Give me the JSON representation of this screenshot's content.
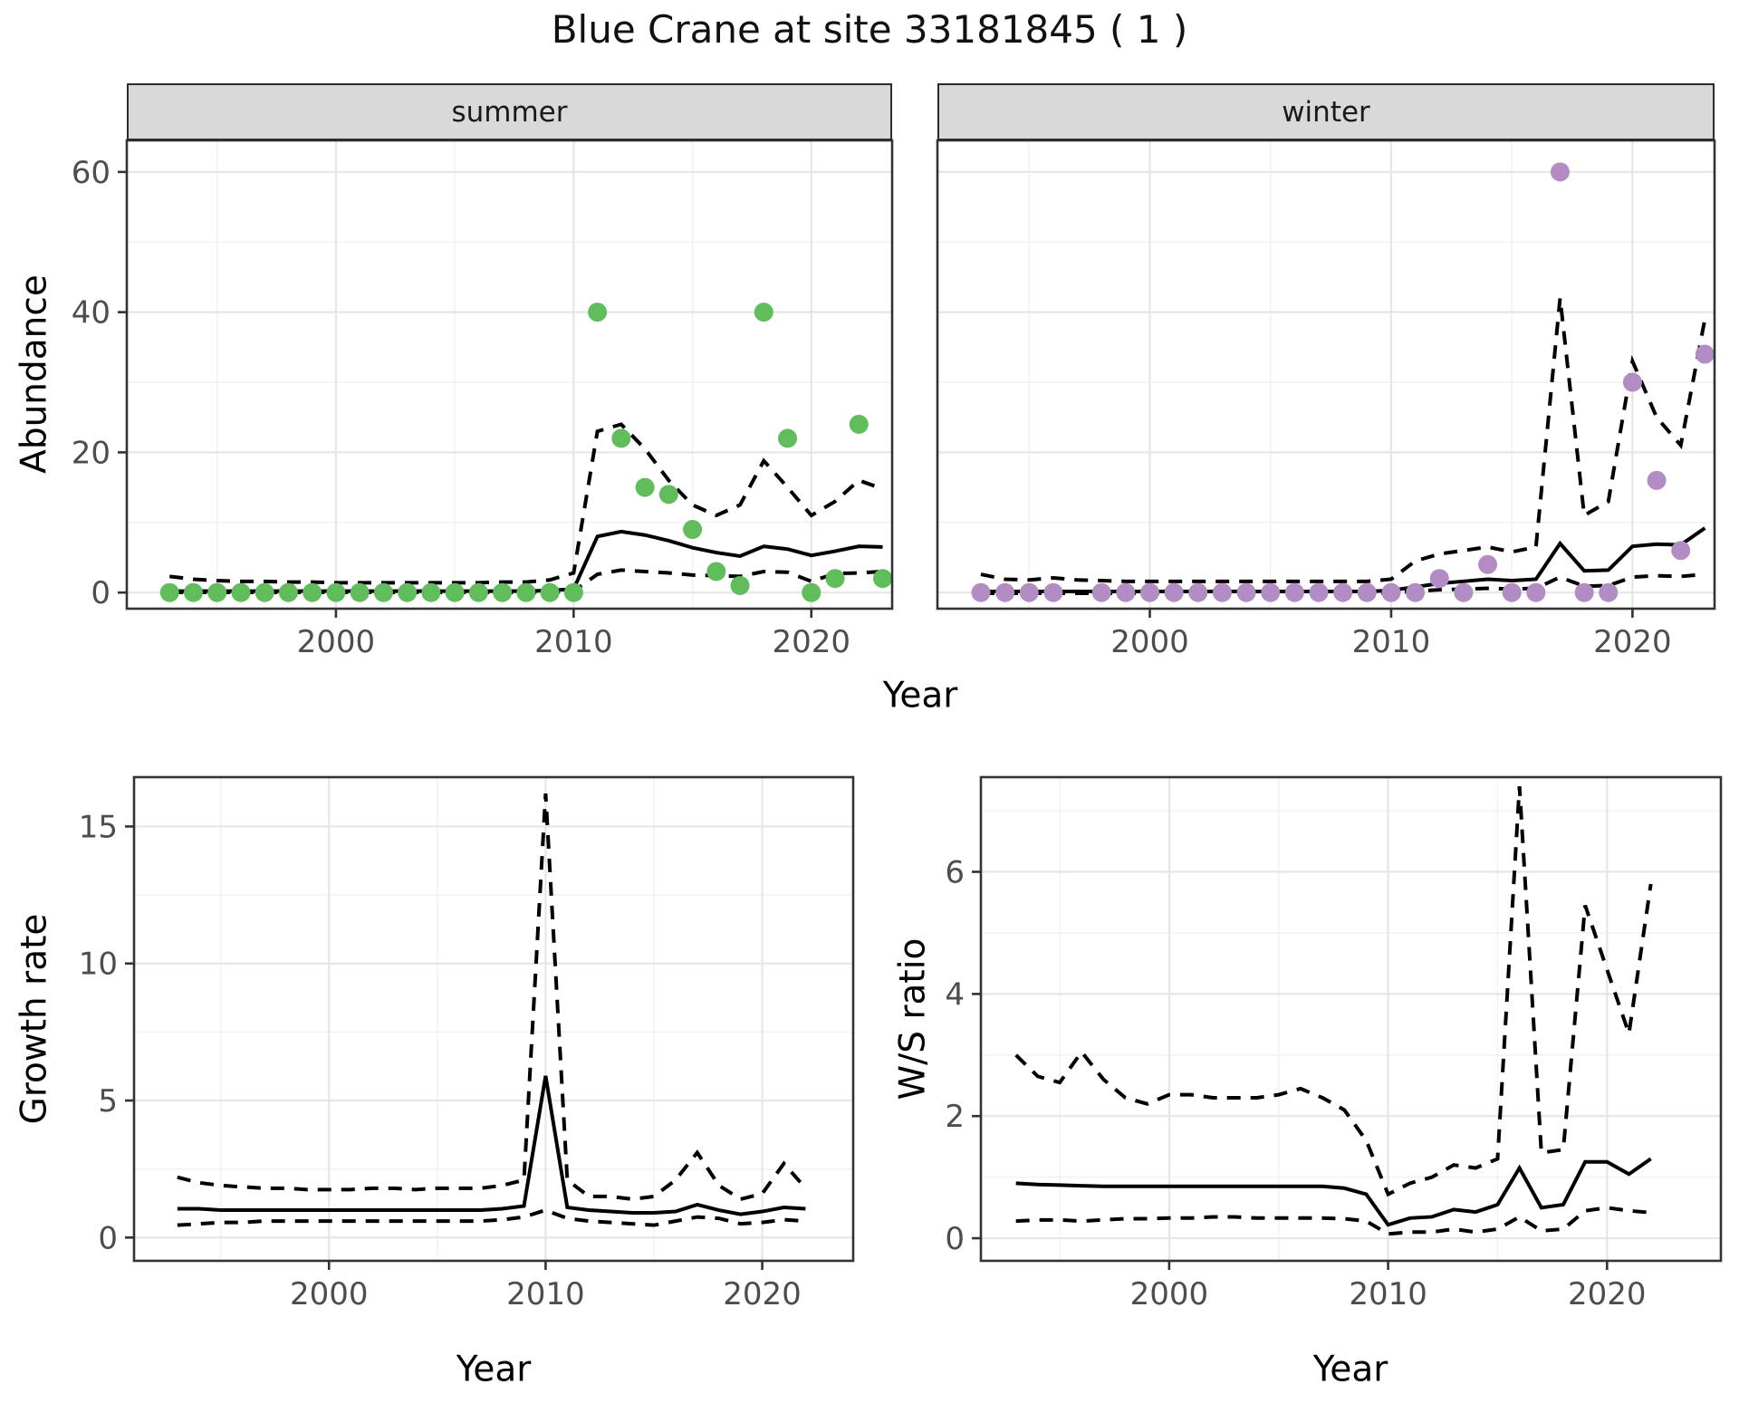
{
  "title": "Blue Crane at site 33181845 ( 1 )",
  "colors": {
    "summer_point": "#61bc5b",
    "winter_point": "#b48cc4",
    "model_line": "#000000",
    "grid_major": "#e6e6e6",
    "grid_minor": "#f1f1f1",
    "strip_bg": "#d9d9d9",
    "panel_border": "#333333",
    "panel_bg": "#ffffff",
    "tick_label": "#4d4d4d",
    "tick_mark": "#333333"
  },
  "shared_x_axis_title": "Year",
  "chart_data": [
    {
      "id": "abundance-summer",
      "type": "scatter",
      "facet_label": "summer",
      "ylabel": "Abundance",
      "xlabel": "Year",
      "x": [
        1993,
        1994,
        1995,
        1996,
        1997,
        1998,
        1999,
        2000,
        2001,
        2002,
        2003,
        2004,
        2005,
        2006,
        2007,
        2008,
        2009,
        2010,
        2011,
        2012,
        2013,
        2014,
        2015,
        2016,
        2017,
        2018,
        2019,
        2020,
        2021,
        2022,
        2023
      ],
      "series": [
        {
          "name": "median",
          "style": "solid",
          "values": [
            0.2,
            0.2,
            0.2,
            0.2,
            0.2,
            0.2,
            0.2,
            0.2,
            0.2,
            0.2,
            0.2,
            0.2,
            0.2,
            0.2,
            0.2,
            0.2,
            0.3,
            0.5,
            8.0,
            8.7,
            8.2,
            7.4,
            6.4,
            5.7,
            5.2,
            6.6,
            6.2,
            5.3,
            5.9,
            6.6,
            6.5
          ]
        },
        {
          "name": "upper_ci",
          "style": "dashed",
          "values": [
            2.3,
            1.9,
            1.7,
            1.6,
            1.6,
            1.5,
            1.5,
            1.4,
            1.4,
            1.4,
            1.4,
            1.4,
            1.4,
            1.4,
            1.5,
            1.5,
            1.8,
            2.8,
            23,
            24,
            20.5,
            16,
            12.5,
            11,
            12.5,
            18.8,
            15,
            11,
            13,
            16,
            14.8
          ]
        },
        {
          "name": "lower_ci",
          "style": "dashed",
          "values": [
            0.02,
            0.02,
            0.02,
            0.02,
            0.02,
            0.02,
            0.02,
            0.02,
            0.02,
            0.02,
            0.02,
            0.02,
            0.02,
            0.02,
            0.02,
            0.02,
            0.05,
            0.2,
            2.6,
            3.2,
            3.0,
            2.8,
            2.5,
            2.4,
            2.3,
            3.0,
            2.9,
            1.6,
            2.7,
            2.8,
            3.0
          ]
        }
      ],
      "points": {
        "name": "observed-counts",
        "color": "#61bc5b",
        "values": [
          0,
          0,
          0,
          0,
          0,
          0,
          0,
          0,
          0,
          0,
          0,
          0,
          0,
          0,
          0,
          0,
          0,
          0,
          40,
          22,
          15,
          14,
          9,
          3,
          1,
          40,
          22,
          0,
          2,
          24,
          2
        ]
      },
      "xlim": [
        1991.2,
        2023.4
      ],
      "ylim": [
        -2.3,
        64.5
      ],
      "xticks": [
        2000,
        2010,
        2020
      ],
      "yticks": [
        0,
        20,
        40,
        60
      ],
      "xminor": [
        1995,
        2005,
        2015
      ],
      "yminor": [
        10,
        30,
        50
      ],
      "grid": true,
      "legend": "none"
    },
    {
      "id": "abundance-winter",
      "type": "scatter",
      "facet_label": "winter",
      "ylabel": "Abundance",
      "xlabel": "Year",
      "x": [
        1993,
        1994,
        1995,
        1996,
        1997,
        1998,
        1999,
        2000,
        2001,
        2002,
        2003,
        2004,
        2005,
        2006,
        2007,
        2008,
        2009,
        2010,
        2011,
        2012,
        2013,
        2014,
        2015,
        2016,
        2017,
        2018,
        2019,
        2020,
        2021,
        2022,
        2023
      ],
      "series": [
        {
          "name": "median",
          "style": "solid",
          "values": [
            0.15,
            0.15,
            0.15,
            0.15,
            0.15,
            0.15,
            0.15,
            0.15,
            0.15,
            0.15,
            0.15,
            0.15,
            0.15,
            0.15,
            0.15,
            0.15,
            0.15,
            0.3,
            0.8,
            1.3,
            1.6,
            1.9,
            1.7,
            1.9,
            7.0,
            3.1,
            3.2,
            6.6,
            6.9,
            6.8,
            9.2
          ]
        },
        {
          "name": "upper_ci",
          "style": "dashed",
          "values": [
            2.6,
            1.9,
            1.8,
            2.1,
            1.8,
            1.7,
            1.6,
            1.6,
            1.6,
            1.6,
            1.6,
            1.6,
            1.6,
            1.6,
            1.6,
            1.6,
            1.6,
            1.9,
            4.5,
            5.5,
            6.0,
            6.5,
            5.8,
            6.5,
            42,
            11,
            13,
            33,
            25,
            21,
            39
          ]
        },
        {
          "name": "lower_ci",
          "style": "dashed",
          "values": [
            -0.1,
            -0.1,
            -0.1,
            -0.1,
            -0.1,
            -0.1,
            -0.1,
            -0.1,
            -0.1,
            -0.1,
            -0.1,
            -0.1,
            -0.1,
            -0.1,
            -0.1,
            -0.1,
            -0.1,
            0.0,
            0.2,
            0.4,
            0.5,
            0.6,
            0.5,
            0.6,
            2.2,
            0.9,
            1.0,
            2.2,
            2.4,
            2.3,
            2.6
          ]
        }
      ],
      "points": {
        "name": "observed-counts",
        "color": "#b48cc4",
        "values": [
          0,
          0,
          0,
          0,
          null,
          0,
          0,
          0,
          0,
          0,
          0,
          0,
          0,
          0,
          0,
          0,
          0,
          0,
          0,
          2,
          0,
          4,
          0,
          0,
          60,
          0,
          0,
          30,
          16,
          6,
          34
        ]
      },
      "xlim": [
        1991.2,
        2023.4
      ],
      "ylim": [
        -2.3,
        64.5
      ],
      "xticks": [
        2000,
        2010,
        2020
      ],
      "yticks": [],
      "xminor": [
        1995,
        2005,
        2015
      ],
      "yminor": [
        10,
        30,
        50
      ],
      "grid": true,
      "legend": "none"
    },
    {
      "id": "growth-rate",
      "type": "line",
      "facet_label": "",
      "ylabel": "Growth rate",
      "xlabel": "Year",
      "x": [
        1993,
        1994,
        1995,
        1996,
        1997,
        1998,
        1999,
        2000,
        2001,
        2002,
        2003,
        2004,
        2005,
        2006,
        2007,
        2008,
        2009,
        2010,
        2011,
        2012,
        2013,
        2014,
        2015,
        2016,
        2017,
        2018,
        2019,
        2020,
        2021,
        2022
      ],
      "series": [
        {
          "name": "median",
          "style": "solid",
          "values": [
            1.05,
            1.05,
            1.0,
            1.0,
            1.0,
            1.0,
            1.0,
            1.0,
            1.0,
            1.0,
            1.0,
            1.0,
            1.0,
            1.0,
            1.0,
            1.05,
            1.15,
            5.9,
            1.1,
            1.0,
            0.95,
            0.9,
            0.9,
            0.95,
            1.2,
            1.0,
            0.85,
            0.95,
            1.1,
            1.05
          ]
        },
        {
          "name": "upper_ci",
          "style": "dashed",
          "values": [
            2.2,
            2.0,
            1.9,
            1.85,
            1.8,
            1.8,
            1.75,
            1.75,
            1.75,
            1.8,
            1.8,
            1.75,
            1.8,
            1.8,
            1.8,
            1.9,
            2.1,
            16.2,
            2.1,
            1.5,
            1.5,
            1.4,
            1.5,
            2.1,
            3.1,
            1.9,
            1.4,
            1.6,
            2.7,
            1.8
          ]
        },
        {
          "name": "lower_ci",
          "style": "dashed",
          "values": [
            0.45,
            0.5,
            0.55,
            0.55,
            0.6,
            0.6,
            0.6,
            0.6,
            0.6,
            0.6,
            0.6,
            0.6,
            0.6,
            0.6,
            0.6,
            0.65,
            0.75,
            1.0,
            0.7,
            0.6,
            0.55,
            0.5,
            0.45,
            0.6,
            0.75,
            0.7,
            0.5,
            0.55,
            0.65,
            0.6
          ]
        }
      ],
      "points": null,
      "xlim": [
        1991.0,
        2024.2
      ],
      "ylim": [
        -0.85,
        16.8
      ],
      "xticks": [
        2000,
        2010,
        2020
      ],
      "yticks": [
        0,
        5,
        10,
        15
      ],
      "xminor": [
        1995,
        2005,
        2015
      ],
      "yminor": [
        2.5,
        7.5,
        12.5
      ],
      "grid": true,
      "legend": "none"
    },
    {
      "id": "ws-ratio",
      "type": "line",
      "facet_label": "",
      "ylabel": "W/S ratio",
      "xlabel": "Year",
      "x": [
        1993,
        1994,
        1995,
        1996,
        1997,
        1998,
        1999,
        2000,
        2001,
        2002,
        2003,
        2004,
        2005,
        2006,
        2007,
        2008,
        2009,
        2010,
        2011,
        2012,
        2013,
        2014,
        2015,
        2016,
        2017,
        2018,
        2019,
        2020,
        2021,
        2022
      ],
      "series": [
        {
          "name": "median",
          "style": "solid",
          "values": [
            0.9,
            0.88,
            0.87,
            0.86,
            0.85,
            0.85,
            0.85,
            0.85,
            0.85,
            0.85,
            0.85,
            0.85,
            0.85,
            0.85,
            0.85,
            0.82,
            0.72,
            0.22,
            0.33,
            0.35,
            0.47,
            0.43,
            0.55,
            1.15,
            0.5,
            0.55,
            1.25,
            1.25,
            1.05,
            1.3
          ]
        },
        {
          "name": "upper_ci",
          "style": "dashed",
          "values": [
            3.0,
            2.65,
            2.55,
            3.05,
            2.6,
            2.3,
            2.2,
            2.35,
            2.35,
            2.3,
            2.3,
            2.3,
            2.35,
            2.45,
            2.3,
            2.1,
            1.6,
            0.72,
            0.9,
            1.0,
            1.2,
            1.15,
            1.3,
            7.4,
            1.4,
            1.45,
            5.45,
            4.4,
            3.35,
            5.8
          ]
        },
        {
          "name": "lower_ci",
          "style": "dashed",
          "values": [
            0.28,
            0.3,
            0.3,
            0.28,
            0.3,
            0.32,
            0.32,
            0.33,
            0.33,
            0.35,
            0.35,
            0.33,
            0.33,
            0.33,
            0.33,
            0.32,
            0.28,
            0.07,
            0.1,
            0.1,
            0.15,
            0.1,
            0.15,
            0.35,
            0.12,
            0.15,
            0.45,
            0.5,
            0.45,
            0.42
          ]
        }
      ],
      "points": null,
      "xlim": [
        1991.4,
        2025.2
      ],
      "ylim": [
        -0.37,
        7.55
      ],
      "xticks": [
        2000,
        2010,
        2020
      ],
      "yticks": [
        0,
        2,
        4,
        6
      ],
      "xminor": [
        1995,
        2005,
        2015
      ],
      "yminor": [
        1,
        3,
        5,
        7
      ],
      "grid": true,
      "legend": "none"
    }
  ]
}
